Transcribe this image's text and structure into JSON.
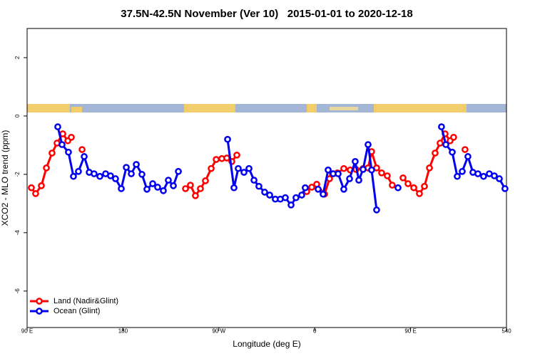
{
  "chart_data": {
    "type": "line",
    "title": "37.5N-42.5N November (Ver 10)   2015-01-01 to 2020-12-18",
    "x_label": "Longitude (deg E)",
    "y_label": "XCO2 - MLO trend (ppm)",
    "xlim": [
      90,
      540
    ],
    "xticks": [
      {
        "value": 90,
        "label": "90 E"
      },
      180,
      {
        "value": 270,
        "label": "90 W"
      },
      {
        "value": 360,
        "label": "0"
      },
      {
        "value": 450,
        "label": "90 E"
      },
      540
    ],
    "ylim": [
      -7.25,
      3
    ],
    "yticks": [
      -6,
      -4,
      -2,
      0,
      2
    ],
    "legend": "bottom-left",
    "series": [
      {
        "name": "Land (Nadir&Glint)",
        "color": "#ff0000",
        "x": [
          94.0,
          98.0,
          103.4,
          108.1,
          113.4,
          118.1,
          123.5,
          128.2,
          131.5,
          null,
          141.6,
          null,
          238.7,
          243.3,
          248.0,
          252.7,
          257.4,
          262.8,
          267.5,
          272.8,
          277.5,
          282.2,
          286.9,
          null,
          352.5,
          357.2,
          361.9,
          369.2,
          373.9,
          376.6,
          381.3,
          387.3,
          393.3,
          398.7,
          405.4,
          410.1,
          413.4,
          418.1,
          422.8,
          428.1,
          432.8,
          null,
          442.9,
          447.6,
          453.0,
          458.3,
          463.0,
          467.7,
          473.0,
          477.7,
          482.4,
          487.1,
          490.4,
          null,
          501.1
        ],
        "values": [
          -2.46,
          -2.66,
          -2.39,
          -1.78,
          -1.27,
          -0.93,
          -0.61,
          -0.85,
          -0.73,
          null,
          -1.15,
          null,
          -2.49,
          -2.37,
          -2.73,
          -2.49,
          -2.22,
          -1.8,
          -1.49,
          -1.46,
          -1.44,
          -1.56,
          -1.34,
          null,
          -2.59,
          -2.44,
          -2.34,
          -2.68,
          -2.15,
          -1.98,
          -1.95,
          -1.8,
          -1.85,
          -1.83,
          -1.8,
          -1.78,
          -1.22,
          -1.78,
          -1.95,
          -2.05,
          -2.37,
          null,
          -2.12,
          -2.32,
          -2.46,
          -2.66,
          -2.41,
          -1.78,
          -1.27,
          -0.93,
          -0.61,
          -0.85,
          -0.73,
          null,
          -1.15
        ]
      },
      {
        "name": "Ocean (Glint)",
        "color": "#0000ee",
        "x": [
          118.8,
          122.8,
          128.8,
          133.5,
          138.2,
          143.6,
          148.3,
          152.9,
          158.3,
          163.7,
          168.3,
          173.0,
          178.4,
          183.1,
          187.8,
          192.5,
          197.8,
          202.5,
          207.9,
          212.5,
          217.9,
          222.6,
          227.3,
          232.0,
          null,
          278.2,
          284.2,
          288.2,
          293.6,
          298.3,
          303.0,
          307.6,
          313.0,
          317.7,
          323.0,
          327.7,
          332.4,
          337.8,
          342.4,
          347.8,
          351.1,
          null,
          363.2,
          367.9,
          372.6,
          377.3,
          382.0,
          387.3,
          392.7,
          398.0,
          401.4,
          405.4,
          410.1,
          413.4,
          418.1,
          null,
          438.2,
          null,
          479.0,
          483.1,
          489.1,
          493.8,
          498.5,
          503.8,
          508.5,
          513.2,
          518.5,
          523.9,
          528.6,
          533.3,
          538.6
        ],
        "values": [
          -0.37,
          -0.98,
          -1.24,
          -2.07,
          -1.9,
          -1.39,
          -1.93,
          -1.98,
          -2.07,
          -1.98,
          -2.05,
          -2.15,
          -2.49,
          -1.76,
          -1.98,
          -1.66,
          -2.0,
          -2.51,
          -2.32,
          -2.44,
          -2.56,
          -2.2,
          -2.39,
          -1.9,
          null,
          -0.8,
          -2.46,
          -1.8,
          -1.93,
          -1.8,
          -2.2,
          -2.41,
          -2.61,
          -2.71,
          -2.85,
          -2.85,
          -2.8,
          -3.05,
          -2.8,
          -2.71,
          -2.46,
          null,
          -2.51,
          -2.68,
          -1.85,
          -1.98,
          -1.98,
          -2.51,
          -2.15,
          -1.56,
          -2.2,
          -1.83,
          -0.98,
          -1.85,
          -3.22,
          null,
          -2.46,
          null,
          -0.37,
          -0.98,
          -1.24,
          -2.07,
          -1.9,
          -1.39,
          -1.93,
          -1.98,
          -2.07,
          -1.98,
          -2.05,
          -2.15,
          -2.49
        ]
      }
    ]
  }
}
